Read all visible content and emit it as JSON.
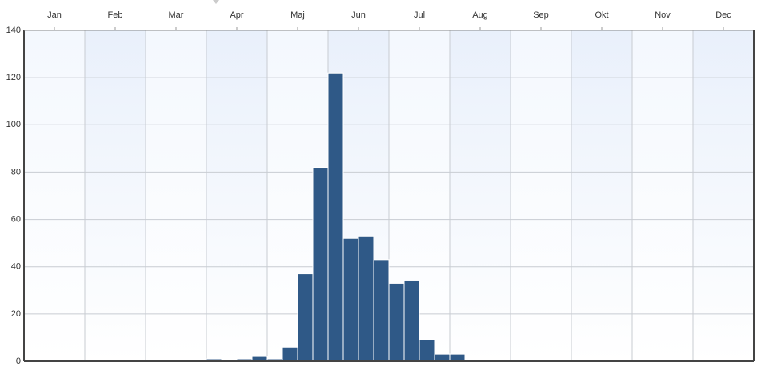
{
  "chart_data": {
    "type": "histogram",
    "bins": [
      3,
      3.25,
      3.5,
      3.75,
      4,
      4.25,
      4.5,
      4.75,
      5,
      5.25,
      5.5,
      5.75,
      6,
      6.25,
      6.5,
      6.75,
      7,
      7.25
    ],
    "values": [
      1,
      0,
      1,
      2,
      1,
      6,
      37,
      82,
      122,
      52,
      53,
      43,
      33,
      34,
      9,
      3,
      3
    ],
    "color": "#2f5987",
    "xlim": [
      0,
      12
    ],
    "xticks": [
      {
        "value": 0.5,
        "label": "Jan"
      },
      {
        "value": 1.5,
        "label": "Feb"
      },
      {
        "value": 2.5,
        "label": "Mar"
      },
      {
        "value": 3.5,
        "label": "Apr"
      },
      {
        "value": 4.5,
        "label": "Maj"
      },
      {
        "value": 5.5,
        "label": "Jun"
      },
      {
        "value": 6.5,
        "label": "Jul"
      },
      {
        "value": 7.5,
        "label": "Aug"
      },
      {
        "value": 8.5,
        "label": "Sep"
      },
      {
        "value": 9.5,
        "label": "Okt"
      },
      {
        "value": 10.5,
        "label": "Nov"
      },
      {
        "value": 11.5,
        "label": "Dec"
      }
    ],
    "ylim": [
      0,
      140
    ],
    "yticks": [
      0,
      20,
      40,
      60,
      80,
      100,
      120,
      140
    ],
    "grid": true
  }
}
